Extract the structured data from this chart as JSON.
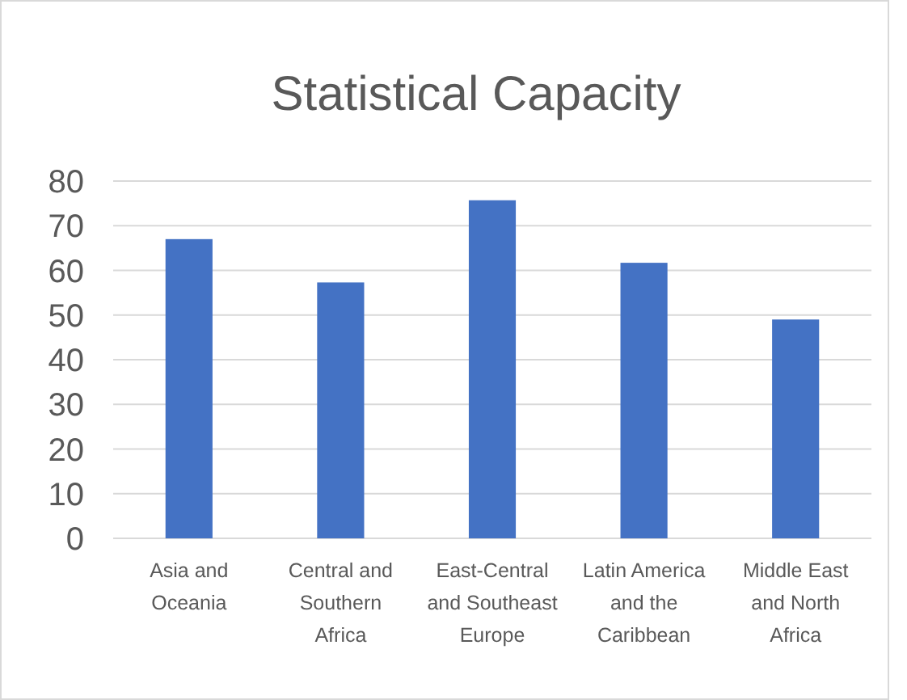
{
  "chart_data": {
    "type": "bar",
    "title": "Statistical Capacity",
    "categories": [
      "Asia and Oceania",
      "Central and Southern Africa",
      "East-Central and Southeast Europe",
      "Latin America and the Caribbean",
      "Middle East and North Africa"
    ],
    "values": [
      67,
      57.3,
      75.7,
      61.7,
      49
    ],
    "color": "#4472c4",
    "ylim": [
      0,
      80
    ],
    "yticks": [
      0,
      10,
      20,
      30,
      40,
      50,
      60,
      70,
      80
    ],
    "grid": "y"
  }
}
